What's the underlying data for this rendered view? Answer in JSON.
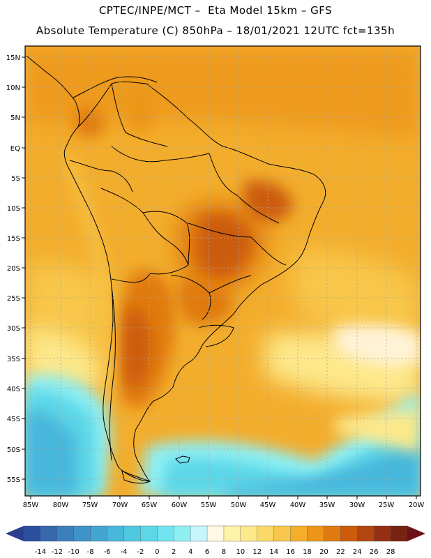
{
  "title_line1": "CPTEC/INPE/MCT –  Eta Model 15km – GFS",
  "title_line2": "Absolute Temperature (C) 850hPa – 18/01/2021 12UTC fct=135h",
  "lat_labels": [
    "15N",
    "10N",
    "5N",
    "EQ",
    "5S",
    "10S",
    "15S",
    "20S",
    "25S",
    "30S",
    "35S",
    "40S",
    "45S",
    "50S",
    "55S"
  ],
  "lon_labels": [
    "85W",
    "80W",
    "75W",
    "70W",
    "65W",
    "60W",
    "55W",
    "50W",
    "45W",
    "40W",
    "35W",
    "30W",
    "25W",
    "20W"
  ],
  "colorbar": {
    "labels": [
      "-14",
      "-12",
      "-10",
      "-8",
      "-6",
      "-4",
      "-2",
      "0",
      "2",
      "4",
      "6",
      "8",
      "10",
      "12",
      "14",
      "16",
      "18",
      "20",
      "22",
      "24",
      "26",
      "28"
    ],
    "colors": [
      "#2b4f9e",
      "#3668ae",
      "#3c7fbd",
      "#3f93c8",
      "#43a6d2",
      "#47b7dc",
      "#4fc8e2",
      "#5bd7e8",
      "#6fe4ee",
      "#8ff0f4",
      "#c6f6fb",
      "#fff8e2",
      "#fff3a8",
      "#fde88a",
      "#fbd968",
      "#f8c64a",
      "#f4ae2a",
      "#ec9518",
      "#e07a10",
      "#cc5c0c",
      "#b34510",
      "#962f12",
      "#772312"
    ],
    "left_arrow_color": "#2a3d8f",
    "right_arrow_color": "#6e1018"
  }
}
